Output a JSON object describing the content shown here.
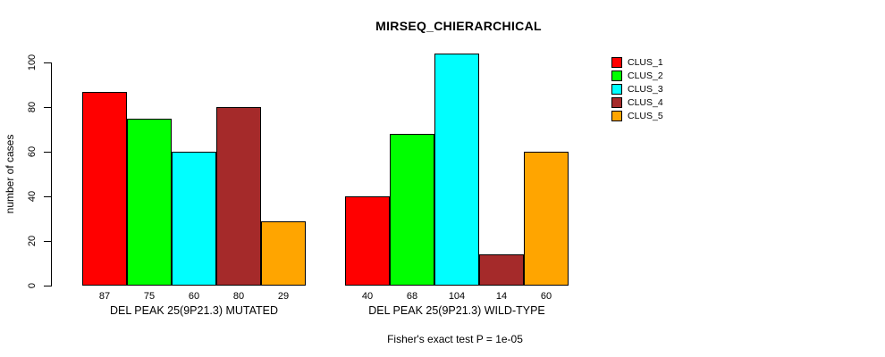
{
  "chart_data": {
    "type": "bar",
    "title": "MIRSEQ_CHIERARCHICAL",
    "ylabel": "number of cases",
    "xlabel": "",
    "ylim": [
      0,
      100
    ],
    "yticks": [
      0,
      20,
      40,
      60,
      80,
      100
    ],
    "grid": false,
    "legend_position": "right",
    "categories": [
      "DEL PEAK 25(9P21.3) MUTATED",
      "DEL PEAK 25(9P21.3) WILD-TYPE"
    ],
    "groups": [
      {
        "label": "DEL PEAK 25(9P21.3) MUTATED",
        "values": [
          87,
          75,
          60,
          80,
          29
        ]
      },
      {
        "label": "DEL PEAK 25(9P21.3) WILD-TYPE",
        "values": [
          40,
          68,
          104,
          14,
          60
        ]
      }
    ],
    "series": [
      {
        "name": "CLUS_1",
        "color": "#FF0000"
      },
      {
        "name": "CLUS_2",
        "color": "#00FF00"
      },
      {
        "name": "CLUS_3",
        "color": "#00FFFF"
      },
      {
        "name": "CLUS_4",
        "color": "#A52A2A"
      },
      {
        "name": "CLUS_5",
        "color": "#FFA500"
      }
    ],
    "bar_value_labels": [
      [
        87,
        75,
        60,
        80,
        29
      ],
      [
        40,
        68,
        104,
        14,
        60
      ]
    ],
    "footnote": "Fisher's exact test P = 1e-05",
    "axis_color": "#000000",
    "background_color": "#FFFFFF"
  }
}
